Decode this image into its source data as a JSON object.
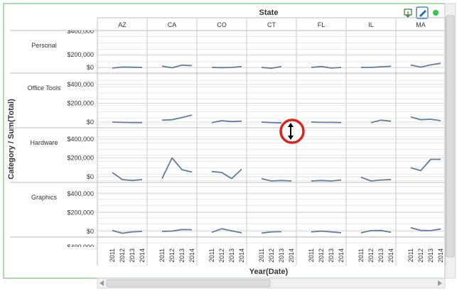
{
  "chart_data": {
    "type": "line",
    "x_title": "Year(Date)",
    "y_title": "Category / Sum(Total)",
    "column_title": "State",
    "columns": [
      "AZ",
      "CA",
      "CO",
      "CT",
      "FL",
      "IL",
      "MA"
    ],
    "rows": [
      "Personal",
      "Office Tools",
      "Hardware",
      "Graphics"
    ],
    "x": [
      "2011",
      "2012",
      "2013",
      "2014"
    ],
    "y_ticks": [
      "$0",
      "$200,000",
      "$400,000"
    ],
    "clipped_tick": "$400,000",
    "ylim": [
      0,
      400000
    ],
    "grid": true,
    "line_color": "#5f7ea0",
    "series": {
      "Personal": {
        "AZ": [
          -10000,
          5000,
          3000,
          0
        ],
        "CA": [
          20000,
          -5000,
          35000,
          28000
        ],
        "CO": [
          0,
          -3000,
          0,
          12000
        ],
        "CT": [
          0,
          -12000,
          15000,
          null
        ],
        "FL": [
          0,
          15000,
          -10000,
          0
        ],
        "IL": [
          0,
          0,
          10000,
          18000
        ],
        "MA": [
          38000,
          5000,
          40000,
          65000
        ]
      },
      "Office Tools": {
        "AZ": [
          0,
          -3000,
          -5000,
          -5000
        ],
        "CA": [
          20000,
          25000,
          48000,
          75000
        ],
        "CO": [
          -5000,
          15000,
          5000,
          10000
        ],
        "CT": [
          0,
          -5000,
          -8000,
          null
        ],
        "FL": [
          0,
          -3000,
          -3000,
          -5000
        ],
        "IL": [
          null,
          -5000,
          20000,
          10000
        ],
        "MA": [
          55000,
          25000,
          30000,
          15000
        ]
      },
      "Hardware": {
        "AZ": [
          45000,
          -30000,
          -40000,
          -30000
        ],
        "CA": [
          -20000,
          200000,
          75000,
          50000
        ],
        "CO": [
          55000,
          45000,
          -20000,
          80000
        ],
        "CT": [
          -20000,
          -45000,
          -40000,
          -45000
        ],
        "FL": [
          -45000,
          -40000,
          -45000,
          -35000
        ],
        "IL": [
          -5000,
          -45000,
          -35000,
          -30000
        ],
        "MA": [
          95000,
          65000,
          185000,
          185000
        ]
      },
      "Graphics": {
        "AZ": [
          10000,
          -20000,
          -5000,
          0
        ],
        "CA": [
          0,
          3000,
          20000,
          18000
        ],
        "CO": [
          -10000,
          28000,
          5000,
          -15000
        ],
        "CT": [
          -18000,
          -5000,
          -3000,
          null
        ],
        "FL": [
          -5000,
          3000,
          -5000,
          -15000
        ],
        "IL": [
          -15000,
          8000,
          10000,
          -10000
        ],
        "MA": [
          40000,
          10000,
          8000,
          25000
        ]
      }
    }
  },
  "toolbar": {
    "export_icon": "export-icon",
    "edit_icon": "pencil-icon",
    "status_icon": "status-dot-icon",
    "status_color": "#2ecc40",
    "accent_color": "#1f6fb5"
  },
  "cursor": {
    "icon": "resize-vertical-icon",
    "highlight_color": "#e0201b"
  },
  "frame": {
    "border_color": "#8fd38f"
  }
}
